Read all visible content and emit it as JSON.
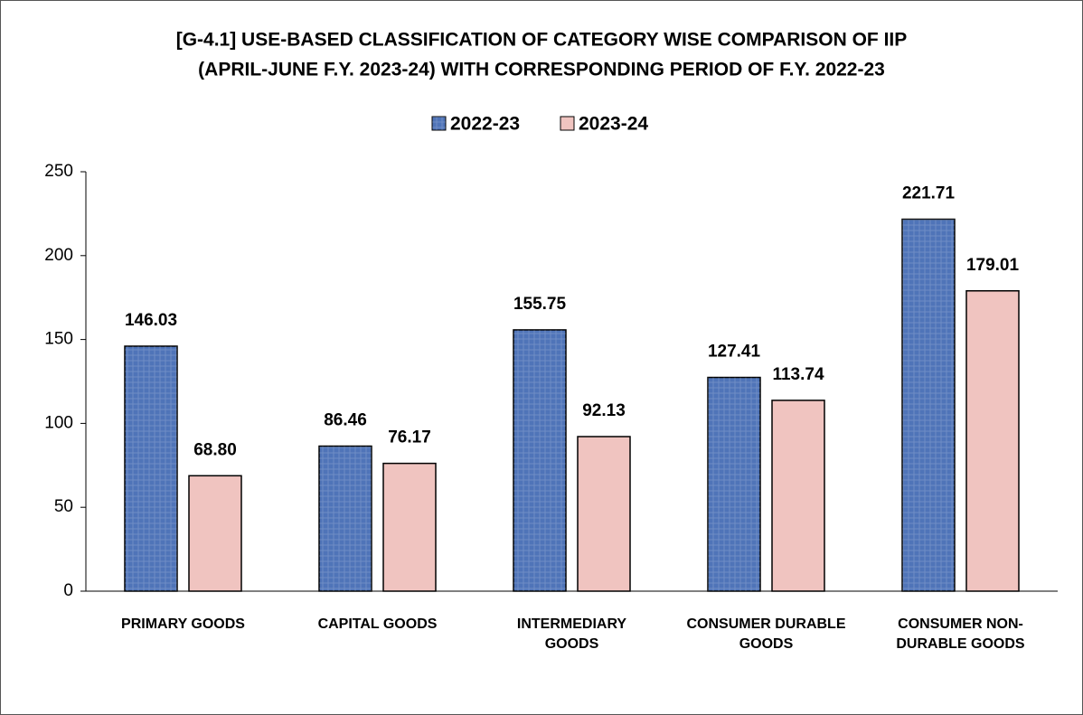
{
  "chart_data": {
    "type": "bar",
    "title": [
      "[G-4.1] USE-BASED CLASSIFICATION OF CATEGORY WISE COMPARISON OF  IIP",
      "(APRIL-JUNE F.Y. 2023-24) WITH CORRESPONDING PERIOD OF F.Y. 2022-23"
    ],
    "categories": [
      "PRIMARY GOODS",
      "CAPITAL GOODS",
      "INTERMEDIARY GOODS",
      "CONSUMER DURABLE GOODS",
      "CONSUMER NON-DURABLE GOODS"
    ],
    "series": [
      {
        "name": "2022-23",
        "color": "#4f74b8",
        "values": [
          146.03,
          86.46,
          155.75,
          127.41,
          221.71
        ],
        "value_labels": [
          "146.03",
          "86.46",
          "155.75",
          "127.41",
          "221.71"
        ]
      },
      {
        "name": "2023-24",
        "color": "#f0c4c0",
        "values": [
          68.8,
          76.17,
          92.13,
          113.74,
          179.01
        ],
        "value_labels": [
          "68.80",
          "76.17",
          "92.13",
          "113.74",
          "179.01"
        ]
      }
    ],
    "ylim": [
      0,
      250
    ],
    "yticks": [
      0,
      50,
      100,
      150,
      200,
      250
    ],
    "grid": false,
    "legend": "top"
  }
}
